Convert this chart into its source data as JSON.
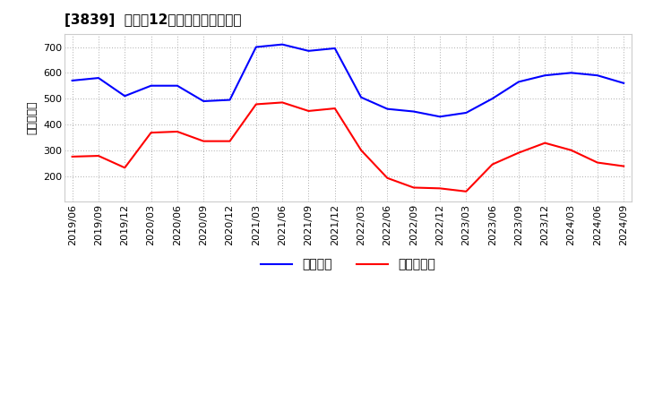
{
  "title": "[3839]  利益だ12か月移動合計の推移",
  "ylabel": "（百万円）",
  "background_color": "#ffffff",
  "plot_bg_color": "#ffffff",
  "grid_color": "#aaaaaa",
  "x_labels": [
    "2019/06",
    "2019/09",
    "2019/12",
    "2020/03",
    "2020/06",
    "2020/09",
    "2020/12",
    "2021/03",
    "2021/06",
    "2021/09",
    "2021/12",
    "2022/03",
    "2022/06",
    "2022/09",
    "2022/12",
    "2023/03",
    "2023/06",
    "2023/09",
    "2023/12",
    "2024/03",
    "2024/06",
    "2024/09"
  ],
  "keijo_rieki": [
    570,
    580,
    510,
    550,
    550,
    490,
    495,
    700,
    710,
    685,
    695,
    505,
    460,
    450,
    430,
    445,
    500,
    565,
    590,
    600,
    590,
    560
  ],
  "touki_junrieki": [
    275,
    278,
    232,
    368,
    372,
    335,
    335,
    478,
    485,
    452,
    462,
    300,
    192,
    155,
    152,
    140,
    245,
    290,
    328,
    300,
    252,
    238
  ],
  "keijo_color": "#0000ff",
  "touki_color": "#ff0000",
  "ylim_min": 100,
  "ylim_max": 750,
  "yticks": [
    200,
    300,
    400,
    500,
    600,
    700
  ],
  "line_width": 1.5,
  "legend_keijo": "経常利益",
  "legend_touki": "当期純利益",
  "title_fontsize": 11,
  "label_fontsize": 9,
  "tick_fontsize": 8
}
